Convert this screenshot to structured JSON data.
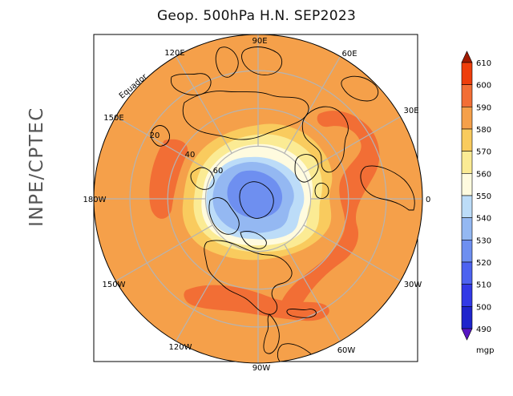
{
  "title": "Geop. 500hPa H.N. SEP2023",
  "credit": "INPE/CPTEC",
  "colors": {
    "frame": "#000000",
    "graticule": "#b4b4b4",
    "coast": "#000000"
  },
  "longitude_labels": [
    "90E",
    "60E",
    "30E",
    "0",
    "30W",
    "60W",
    "90W",
    "120W",
    "150W",
    "180W",
    "150E",
    "120E"
  ],
  "latitude_labels": [
    "Equador",
    "20",
    "40",
    "60"
  ],
  "colorbar": {
    "unit": "mgp",
    "levels": [
      "610",
      "600",
      "590",
      "580",
      "570",
      "560",
      "550",
      "540",
      "530",
      "520",
      "510",
      "500",
      "490"
    ],
    "bins": [
      "#a11a00",
      "#ee3e0b",
      "#f26e35",
      "#f5a04a",
      "#f9cb5e",
      "#fbeb94",
      "#fffbdf",
      "#bcdcf8",
      "#94b8f2",
      "#6e8ff0",
      "#4d63f0",
      "#3239e6",
      "#1f24cc",
      "#5716c2"
    ]
  }
}
